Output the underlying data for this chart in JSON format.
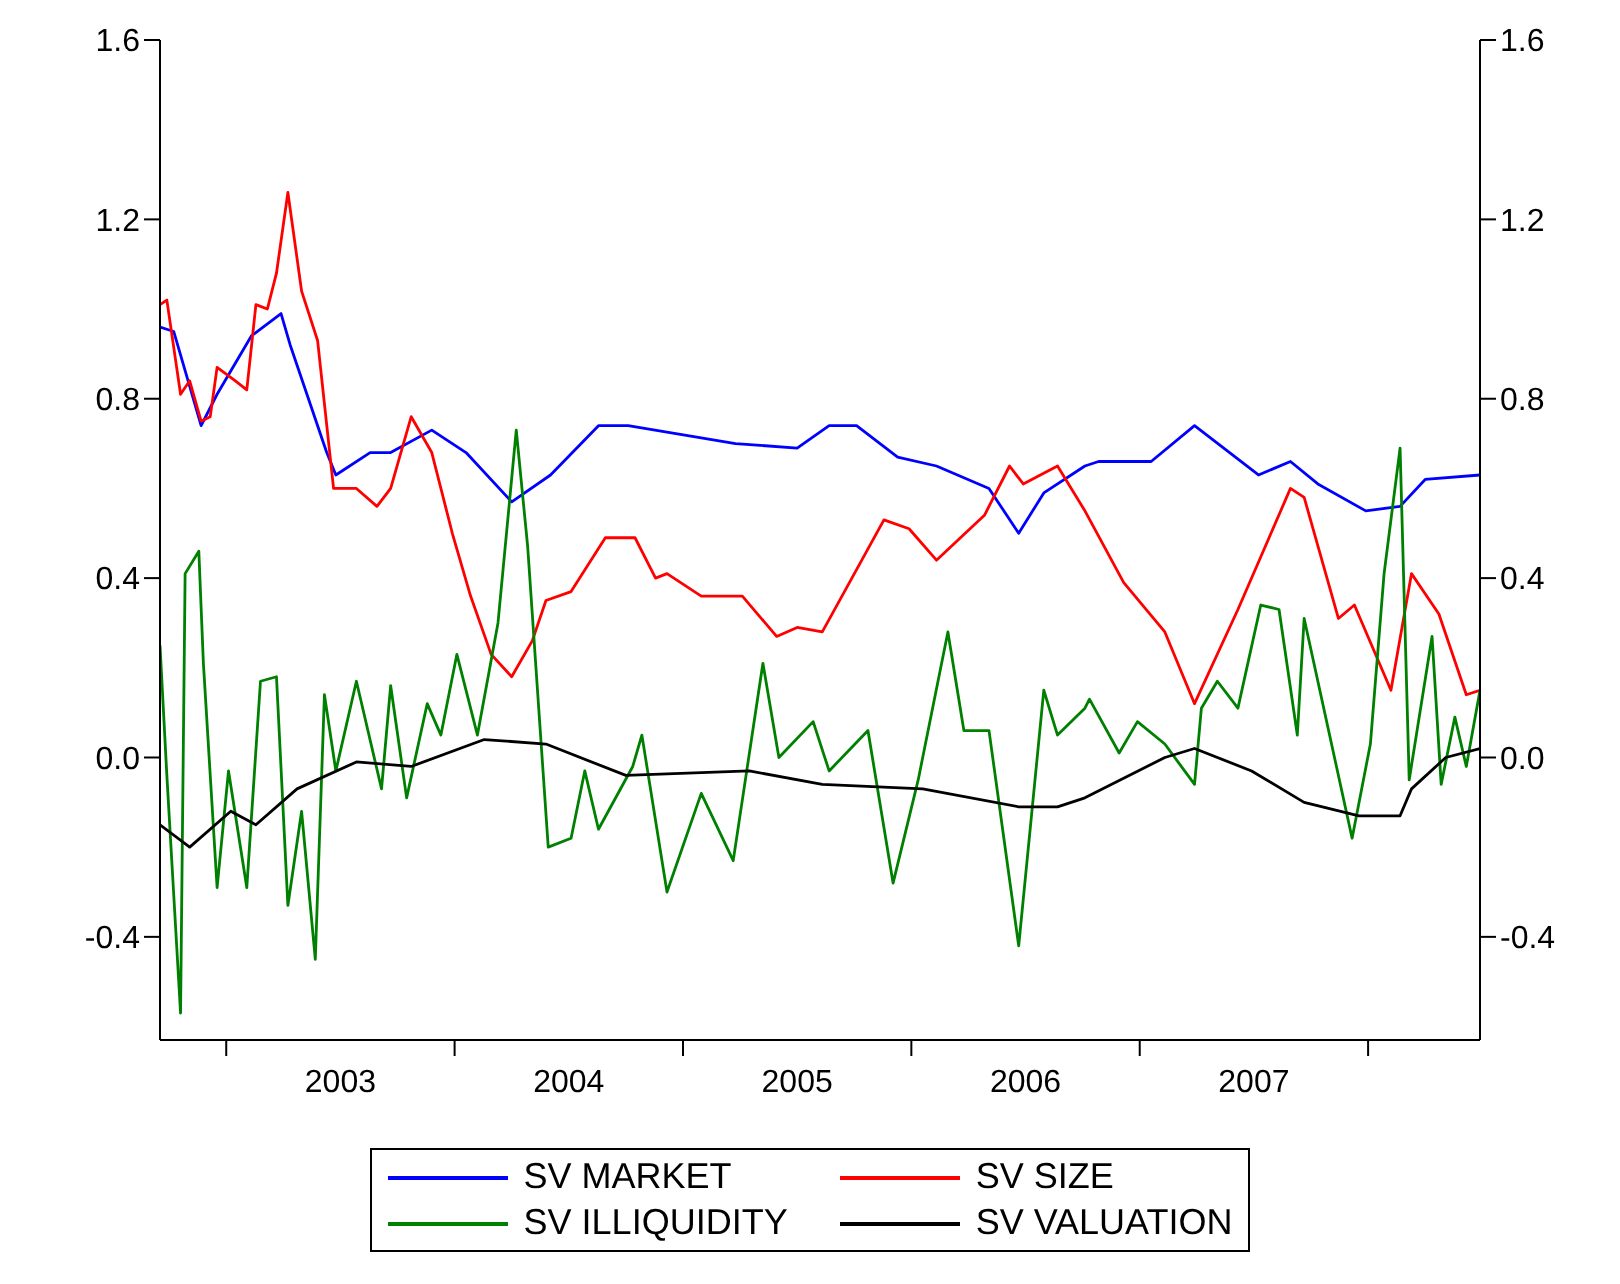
{
  "chart_data": {
    "type": "line",
    "xlim": [
      2002.71,
      2008.49
    ],
    "xticks": [
      {
        "value": 2003,
        "label": null
      },
      {
        "value": 2003.5,
        "label": "2003"
      },
      {
        "value": 2004,
        "label": null
      },
      {
        "value": 2004.5,
        "label": "2004"
      },
      {
        "value": 2005,
        "label": null
      },
      {
        "value": 2005.5,
        "label": "2005"
      },
      {
        "value": 2006,
        "label": null
      },
      {
        "value": 2006.5,
        "label": "2006"
      },
      {
        "value": 2007,
        "label": null
      },
      {
        "value": 2007.5,
        "label": "2007"
      },
      {
        "value": 2008,
        "label": null
      }
    ],
    "ylim": [
      -0.63,
      1.6
    ],
    "yticks": [
      -0.4,
      {
        "value": 0,
        "label": "0.0"
      },
      0.4,
      0.8,
      1.2,
      1.6
    ],
    "y2lim": [
      -0.63,
      1.6
    ],
    "y2ticks": [
      -0.4,
      {
        "value": 0,
        "label": "0.0"
      },
      0.4,
      0.8,
      1.2,
      1.6
    ],
    "legend": "bottom",
    "marker": "none",
    "line_style": "solid",
    "series": [
      {
        "name": "SV MARKET",
        "color": "#0000ff",
        "x": [
          2002.71,
          2002.77,
          2002.89,
          2002.96,
          2003.11,
          2003.24,
          2003.28,
          2003.44,
          2003.48,
          2003.63,
          2003.72,
          2003.9,
          2004.05,
          2004.25,
          2004.42,
          2004.63,
          2004.76,
          2005.23,
          2005.5,
          2005.64,
          2005.76,
          2005.94,
          2006.11,
          2006.34,
          2006.47,
          2006.58,
          2006.76,
          2006.82,
          2007.05,
          2007.24,
          2007.52,
          2007.66,
          2007.78,
          2007.99,
          2008.14,
          2008.25,
          2008.49
        ],
        "values": [
          0.96,
          0.95,
          0.74,
          0.81,
          0.94,
          0.99,
          0.92,
          0.68,
          0.63,
          0.68,
          0.68,
          0.73,
          0.68,
          0.57,
          0.63,
          0.74,
          0.74,
          0.7,
          0.69,
          0.74,
          0.74,
          0.67,
          0.65,
          0.6,
          0.5,
          0.59,
          0.65,
          0.66,
          0.66,
          0.74,
          0.63,
          0.66,
          0.61,
          0.55,
          0.56,
          0.62,
          0.63
        ]
      },
      {
        "name": "SV SIZE",
        "color": "#ff0000",
        "x": [
          2002.71,
          2002.74,
          2002.8,
          2002.84,
          2002.89,
          2002.93,
          2002.96,
          2003.04,
          2003.09,
          2003.13,
          2003.18,
          2003.22,
          2003.27,
          2003.33,
          2003.4,
          2003.47,
          2003.57,
          2003.66,
          2003.72,
          2003.81,
          2003.9,
          2003.99,
          2004.07,
          2004.16,
          2004.25,
          2004.34,
          2004.4,
          2004.51,
          2004.66,
          2004.79,
          2004.88,
          2004.93,
          2005.08,
          2005.26,
          2005.41,
          2005.5,
          2005.61,
          2005.88,
          2005.99,
          2006.11,
          2006.32,
          2006.43,
          2006.49,
          2006.64,
          2006.76,
          2006.93,
          2007.11,
          2007.24,
          2007.43,
          2007.66,
          2007.72,
          2007.87,
          2007.94,
          2008.1,
          2008.19,
          2008.31,
          2008.43,
          2008.49
        ],
        "values": [
          1.01,
          1.02,
          0.81,
          0.84,
          0.75,
          0.76,
          0.87,
          0.84,
          0.82,
          1.01,
          1.0,
          1.08,
          1.26,
          1.04,
          0.93,
          0.6,
          0.6,
          0.56,
          0.6,
          0.76,
          0.68,
          0.5,
          0.36,
          0.23,
          0.18,
          0.26,
          0.35,
          0.37,
          0.49,
          0.49,
          0.4,
          0.41,
          0.36,
          0.36,
          0.27,
          0.29,
          0.28,
          0.53,
          0.51,
          0.44,
          0.54,
          0.65,
          0.61,
          0.65,
          0.55,
          0.39,
          0.28,
          0.12,
          0.33,
          0.6,
          0.58,
          0.31,
          0.34,
          0.15,
          0.41,
          0.32,
          0.14,
          0.15
        ]
      },
      {
        "name": "SV ILLIQUIDITY",
        "color": "#008000",
        "x": [
          2002.71,
          2002.74,
          2002.8,
          2002.82,
          2002.88,
          2002.9,
          2002.96,
          2003.01,
          2003.09,
          2003.15,
          2003.22,
          2003.27,
          2003.33,
          2003.39,
          2003.43,
          2003.48,
          2003.57,
          2003.68,
          2003.72,
          2003.79,
          2003.88,
          2003.94,
          2004.01,
          2004.1,
          2004.19,
          2004.27,
          2004.32,
          2004.41,
          2004.51,
          2004.57,
          2004.63,
          2004.78,
          2004.82,
          2004.93,
          2005.08,
          2005.22,
          2005.35,
          2005.42,
          2005.57,
          2005.64,
          2005.81,
          2005.92,
          2006.03,
          2006.16,
          2006.23,
          2006.34,
          2006.47,
          2006.58,
          2006.64,
          2006.76,
          2006.78,
          2006.91,
          2006.99,
          2007.11,
          2007.24,
          2007.27,
          2007.34,
          2007.43,
          2007.53,
          2007.61,
          2007.69,
          2007.72,
          2007.93,
          2008.01,
          2008.07,
          2008.14,
          2008.18,
          2008.28,
          2008.32,
          2008.38,
          2008.43,
          2008.49
        ],
        "values": [
          0.25,
          -0.04,
          -0.57,
          0.41,
          0.46,
          0.21,
          -0.29,
          -0.03,
          -0.29,
          0.17,
          0.18,
          -0.33,
          -0.12,
          -0.45,
          0.14,
          -0.03,
          0.17,
          -0.07,
          0.16,
          -0.09,
          0.12,
          0.05,
          0.23,
          0.05,
          0.3,
          0.73,
          0.47,
          -0.2,
          -0.18,
          -0.03,
          -0.16,
          -0.02,
          0.05,
          -0.3,
          -0.08,
          -0.23,
          0.21,
          0.0,
          0.08,
          -0.03,
          0.06,
          -0.28,
          -0.05,
          0.28,
          0.06,
          0.06,
          -0.42,
          0.15,
          0.05,
          0.11,
          0.13,
          0.01,
          0.08,
          0.03,
          -0.06,
          0.11,
          0.17,
          0.11,
          0.34,
          0.33,
          0.05,
          0.31,
          -0.18,
          0.03,
          0.41,
          0.69,
          -0.05,
          0.27,
          -0.06,
          0.09,
          -0.02,
          0.15
        ]
      },
      {
        "name": "SV VALUATION",
        "color": "#000000",
        "x": [
          2002.71,
          2002.84,
          2003.02,
          2003.13,
          2003.31,
          2003.57,
          2003.81,
          2004.13,
          2004.4,
          2004.75,
          2005.29,
          2005.61,
          2006.05,
          2006.47,
          2006.64,
          2006.76,
          2007.11,
          2007.24,
          2007.49,
          2007.72,
          2007.96,
          2008.14,
          2008.19,
          2008.34,
          2008.49
        ],
        "values": [
          -0.15,
          -0.2,
          -0.12,
          -0.15,
          -0.07,
          -0.01,
          -0.02,
          0.04,
          0.03,
          -0.04,
          -0.03,
          -0.06,
          -0.07,
          -0.11,
          -0.11,
          -0.09,
          0.0,
          0.02,
          -0.03,
          -0.1,
          -0.13,
          -0.13,
          -0.07,
          0.0,
          0.02
        ]
      }
    ]
  }
}
